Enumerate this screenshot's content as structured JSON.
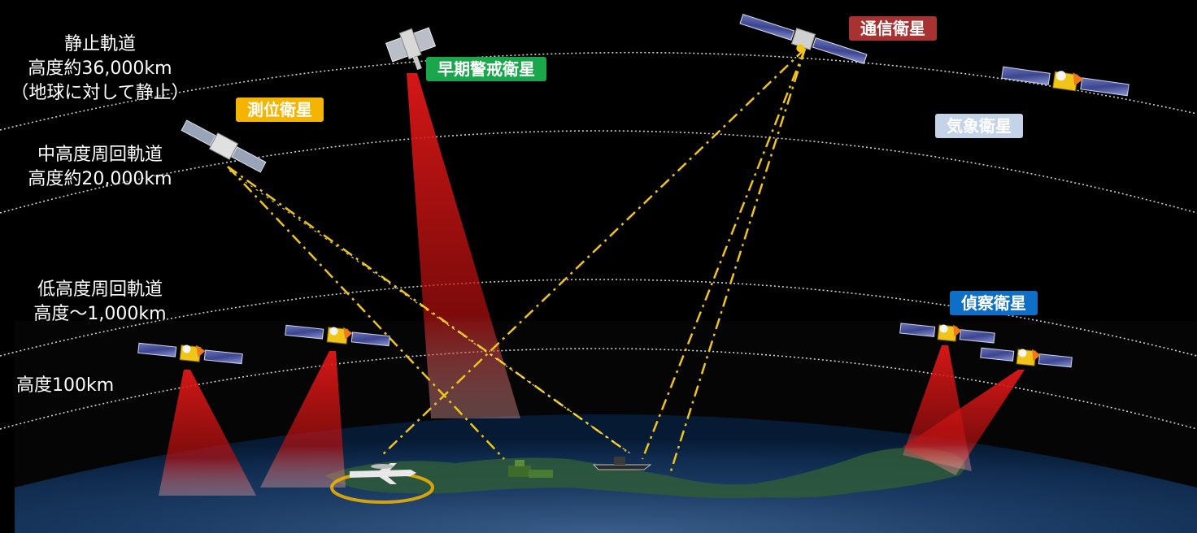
{
  "orbits": {
    "geo": {
      "lines": [
        "静止軌道",
        "高度約36,000km",
        "（地球に対して静止）"
      ]
    },
    "meo": {
      "lines": [
        "中高度周回軌道",
        "高度約20,000km"
      ]
    },
    "leo": {
      "lines": [
        "低高度周回軌道",
        "高度～1,000km"
      ]
    },
    "alt100": {
      "lines": [
        "高度100km"
      ]
    }
  },
  "satellites": {
    "communication": {
      "label": "通信衛星",
      "color": "#a83232"
    },
    "early_warning": {
      "label": "早期警戒衛星",
      "color": "#1aa64a"
    },
    "positioning": {
      "label": "測位衛星",
      "color": "#f5b400"
    },
    "weather": {
      "label": "気象衛星",
      "color": "#c5d3e8"
    },
    "reconnaissance": {
      "label": "偵察衛星",
      "color": "#0f6fc6"
    }
  },
  "colors": {
    "beam": "#d01818",
    "signal_link": "#f0c419",
    "orbit_line": "#cfcfcf",
    "background": "#000000"
  },
  "icons": [
    "satellite-icon",
    "aircraft-icon",
    "ship-icon",
    "ground-station-icon"
  ]
}
